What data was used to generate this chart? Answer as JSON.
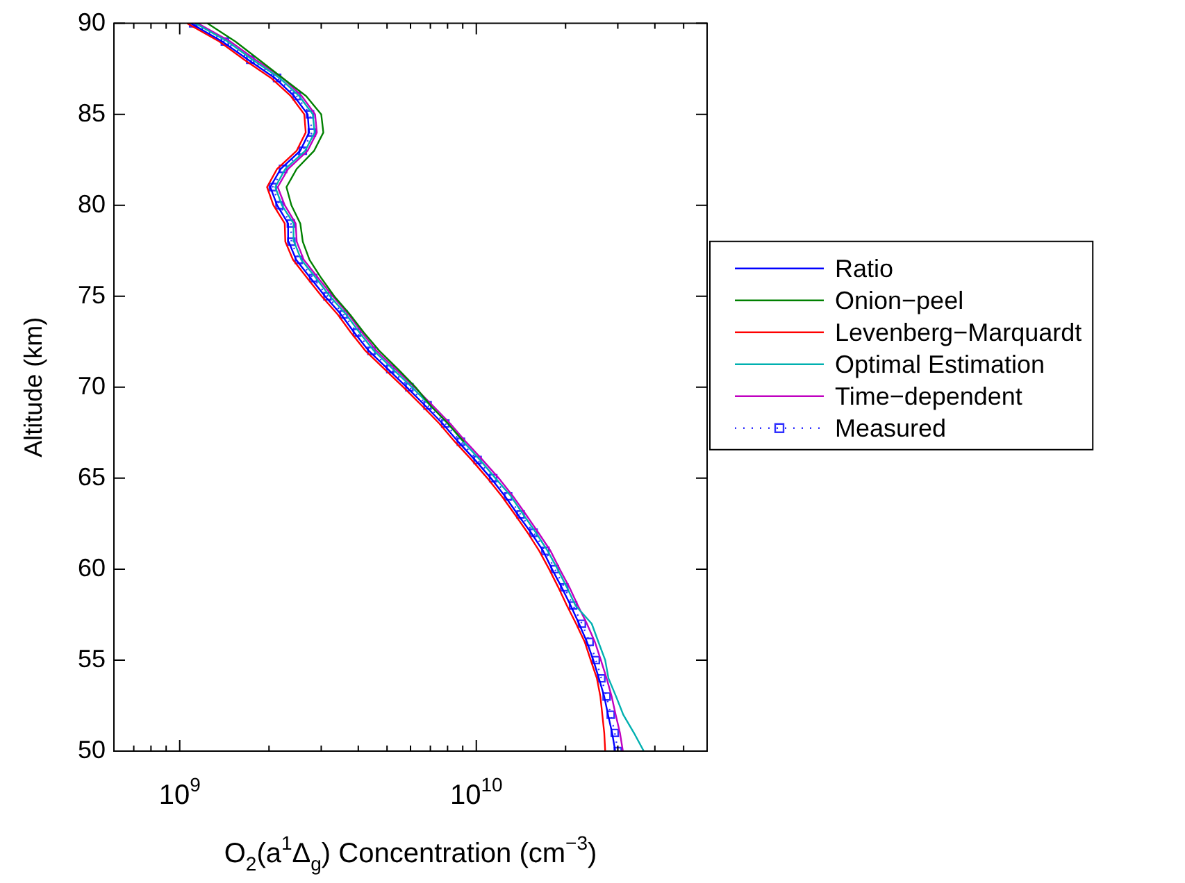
{
  "chart_data": {
    "type": "line",
    "xlabel": "O$_{2}$(a$^{1}$Δ$_{g}$) Concentration (cm$^{−3}$)",
    "ylabel": "Altitude (km)",
    "log": "x",
    "grid": false,
    "legend": "right",
    "xlim": [
      600000000.0,
      60000000000.0
    ],
    "xticks": [
      {
        "value": 700000000.0,
        "label": null
      },
      {
        "value": 800000000.0,
        "label": null
      },
      {
        "value": 900000000.0,
        "label": null
      },
      {
        "value": 1000000000.0,
        "label": "10$^{9}$"
      },
      {
        "value": 2000000000.0,
        "label": null
      },
      {
        "value": 3000000000.0,
        "label": null
      },
      {
        "value": 4000000000.0,
        "label": null
      },
      {
        "value": 5000000000.0,
        "label": null
      },
      {
        "value": 6000000000.0,
        "label": null
      },
      {
        "value": 7000000000.0,
        "label": null
      },
      {
        "value": 8000000000.0,
        "label": null
      },
      {
        "value": 9000000000.0,
        "label": null
      },
      {
        "value": 10000000000.0,
        "label": "10$^{10}$"
      },
      {
        "value": 20000000000.0,
        "label": null
      },
      {
        "value": 30000000000.0,
        "label": null
      },
      {
        "value": 40000000000.0,
        "label": null
      },
      {
        "value": 50000000000.0,
        "label": null
      }
    ],
    "ylim": [
      50,
      90
    ],
    "yticks": [
      50,
      55,
      60,
      65,
      70,
      75,
      80,
      85,
      90
    ],
    "series": [
      {
        "name": "Ratio",
        "color": "#0000ff",
        "marker": "none",
        "line_style": "solid",
        "x": [
          29400000000.0,
          28700000000.0,
          27800000000.0,
          27000000000.0,
          25900000000.0,
          24800000000.0,
          23600000000.0,
          22200000000.0,
          20800000000.0,
          19400000000.0,
          18000000000.0,
          16800000000.0,
          15300000000.0,
          13800000000.0,
          12500000000.0,
          11200000000.0,
          9900000000.0,
          8690000000.0,
          7700000000.0,
          6710000000.0,
          5830000000.0,
          5030000000.0,
          4340000000.0,
          3880000000.0,
          3500000000.0,
          3090000000.0,
          2760000000.0,
          2470000000.0,
          2330000000.0,
          2320000000.0,
          2130000000.0,
          2020000000.0,
          2190000000.0,
          2550000000.0,
          2730000000.0,
          2700000000.0,
          2430000000.0,
          2090000000.0,
          1700000000.0,
          1390000000.0,
          1090000000.0
        ],
        "values": [
          50,
          51,
          52,
          53,
          54,
          55,
          56,
          57,
          58,
          59,
          60,
          61,
          62,
          63,
          64,
          65,
          66,
          67,
          68,
          69,
          70,
          71,
          72,
          73,
          74,
          75,
          76,
          77,
          78,
          79,
          80,
          81,
          82,
          83,
          84,
          85,
          86,
          87,
          88,
          89,
          90
        ]
      },
      {
        "name": "Onion−peel",
        "color": "#008000",
        "marker": "none",
        "line_style": "solid",
        "x": [
          null,
          null,
          null,
          null,
          null,
          null,
          null,
          null,
          null,
          null,
          null,
          null,
          null,
          null,
          null,
          null,
          null,
          9080000000.0,
          8030000000.0,
          7000000000.0,
          6240000000.0,
          5440000000.0,
          4710000000.0,
          4180000000.0,
          3750000000.0,
          3320000000.0,
          3000000000.0,
          2740000000.0,
          2600000000.0,
          2550000000.0,
          2380000000.0,
          2290000000.0,
          2480000000.0,
          2840000000.0,
          3050000000.0,
          3000000000.0,
          2670000000.0,
          2220000000.0,
          1850000000.0,
          1540000000.0,
          1240000000.0
        ],
        "values": [
          null,
          null,
          null,
          null,
          null,
          null,
          null,
          null,
          null,
          null,
          null,
          null,
          null,
          null,
          null,
          null,
          null,
          67,
          68,
          69,
          70,
          71,
          72,
          73,
          74,
          75,
          76,
          77,
          78,
          79,
          80,
          81,
          82,
          83,
          84,
          85,
          86,
          87,
          88,
          89,
          90
        ]
      },
      {
        "name": "Levenberg−Marquardt",
        "color": "#ff0000",
        "marker": "none",
        "line_style": "solid",
        "x": [
          27200000000.0,
          27000000000.0,
          26600000000.0,
          26200000000.0,
          25500000000.0,
          24300000000.0,
          23200000000.0,
          21700000000.0,
          20200000000.0,
          18900000000.0,
          17600000000.0,
          16300000000.0,
          14900000000.0,
          13500000000.0,
          12200000000.0,
          10900000000.0,
          9650000000.0,
          8470000000.0,
          7510000000.0,
          6540000000.0,
          5680000000.0,
          4900000000.0,
          4230000000.0,
          3780000000.0,
          3410000000.0,
          3010000000.0,
          2690000000.0,
          2410000000.0,
          2270000000.0,
          2260000000.0,
          2070000000.0,
          1970000000.0,
          2130000000.0,
          2480000000.0,
          2660000000.0,
          2630000000.0,
          2370000000.0,
          2030000000.0,
          1650000000.0,
          1360000000.0,
          1060000000.0
        ],
        "values": [
          50,
          51,
          52,
          53,
          54,
          55,
          56,
          57,
          58,
          59,
          60,
          61,
          62,
          63,
          64,
          65,
          66,
          67,
          68,
          69,
          70,
          71,
          72,
          73,
          74,
          75,
          76,
          77,
          78,
          79,
          80,
          81,
          82,
          83,
          84,
          85,
          86,
          87,
          88,
          89,
          90
        ]
      },
      {
        "name": "Optimal Estimation",
        "color": "#00b0b0",
        "marker": "none",
        "line_style": "solid",
        "x": [
          36700000000.0,
          34000000000.0,
          31300000000.0,
          29600000000.0,
          27900000000.0,
          27200000000.0,
          25800000000.0,
          24500000000.0,
          21600000000.0,
          20200000000.0,
          18800000000.0,
          17400000000.0,
          15900000000.0,
          14400000000.0,
          13100000000.0,
          11600000000.0,
          10300000000.0,
          9050000000.0,
          8020000000.0,
          6990000000.0,
          6070000000.0,
          5230000000.0,
          4520000000.0,
          4040000000.0,
          3640000000.0,
          3210000000.0,
          2880000000.0,
          2570000000.0,
          2430000000.0,
          2420000000.0,
          2210000000.0,
          2100000000.0,
          2270000000.0,
          2650000000.0,
          2850000000.0,
          2810000000.0,
          2530000000.0,
          2170000000.0,
          1760000000.0,
          1450000000.0,
          1130000000.0
        ],
        "values": [
          50,
          51,
          52,
          53,
          54,
          55,
          56,
          57,
          58,
          59,
          60,
          61,
          62,
          63,
          64,
          65,
          66,
          67,
          68,
          69,
          70,
          71,
          72,
          73,
          74,
          75,
          76,
          77,
          78,
          79,
          80,
          81,
          82,
          83,
          84,
          85,
          86,
          87,
          88,
          89,
          90
        ]
      },
      {
        "name": "Time−dependent",
        "color": "#c000c0",
        "marker": "none",
        "line_style": "solid",
        "x": [
          31200000000.0,
          30500000000.0,
          29500000000.0,
          28600000000.0,
          27500000000.0,
          26300000000.0,
          25100000000.0,
          23600000000.0,
          22000000000.0,
          20600000000.0,
          19100000000.0,
          17800000000.0,
          16200000000.0,
          14700000000.0,
          13300000000.0,
          11900000000.0,
          10500000000.0,
          9220000000.0,
          8170000000.0,
          7120000000.0,
          6190000000.0,
          5340000000.0,
          4610000000.0,
          4120000000.0,
          3710000000.0,
          3280000000.0,
          2930000000.0,
          2620000000.0,
          2480000000.0,
          2460000000.0,
          2260000000.0,
          2140000000.0,
          2320000000.0,
          2700000000.0,
          2900000000.0,
          2860000000.0,
          2580000000.0,
          2220000000.0,
          1800000000.0,
          1480000000.0,
          1150000000.0
        ],
        "values": [
          50,
          51,
          52,
          53,
          54,
          55,
          56,
          57,
          58,
          59,
          60,
          61,
          62,
          63,
          64,
          65,
          66,
          67,
          68,
          69,
          70,
          71,
          72,
          73,
          74,
          75,
          76,
          77,
          78,
          79,
          80,
          81,
          82,
          83,
          84,
          85,
          86,
          87,
          88,
          89,
          90
        ]
      },
      {
        "name": "Measured",
        "color": "#3030ff",
        "marker": "square",
        "line_style": "dotted",
        "x": [
          30000000000.0,
          29300000000.0,
          28400000000.0,
          27500000000.0,
          26400000000.0,
          25300000000.0,
          24100000000.0,
          22700000000.0,
          21200000000.0,
          19800000000.0,
          18400000000.0,
          17100000000.0,
          15600000000.0,
          14100000000.0,
          12800000000.0,
          11400000000.0,
          10100000000.0,
          8870000000.0,
          7860000000.0,
          6850000000.0,
          5950000000.0,
          5130000000.0,
          4430000000.0,
          3960000000.0,
          3570000000.0,
          3150000000.0,
          2820000000.0,
          2520000000.0,
          2380000000.0,
          2370000000.0,
          2170000000.0,
          2060000000.0,
          2230000000.0,
          2600000000.0,
          2790000000.0,
          2750000000.0,
          2480000000.0,
          2130000000.0,
          1730000000.0,
          1420000000.0,
          1110000000.0
        ],
        "values": [
          50,
          51,
          52,
          53,
          54,
          55,
          56,
          57,
          58,
          59,
          60,
          61,
          62,
          63,
          64,
          65,
          66,
          67,
          68,
          69,
          70,
          71,
          72,
          73,
          74,
          75,
          76,
          77,
          78,
          79,
          80,
          81,
          82,
          83,
          84,
          85,
          86,
          87,
          88,
          89,
          90
        ]
      }
    ]
  }
}
